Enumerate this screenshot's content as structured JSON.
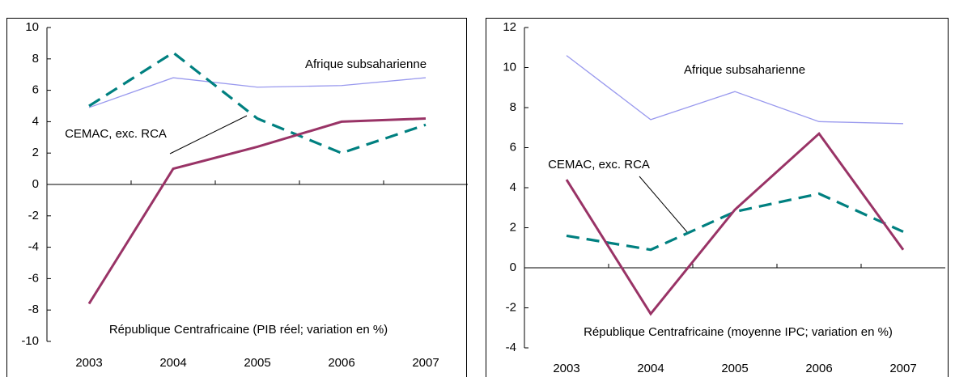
{
  "chart_data": [
    {
      "type": "line",
      "categories": [
        "2003",
        "2004",
        "2005",
        "2006",
        "2007"
      ],
      "ylim": [
        -10,
        10
      ],
      "yticks": [
        -10,
        -8,
        -6,
        -4,
        -2,
        0,
        2,
        4,
        6,
        8,
        10
      ],
      "series": [
        {
          "name": "Afrique subsaharienne",
          "color": "#9999ee",
          "values": [
            4.9,
            6.8,
            6.2,
            6.3,
            6.8
          ]
        },
        {
          "name": "CEMAC, exc. RCA",
          "color": "#008080",
          "values": [
            5.0,
            8.4,
            4.2,
            2.0,
            3.8
          ]
        },
        {
          "name": "République Centrafricaine (PIB réel; variation en %)",
          "color": "#993366",
          "values": [
            -7.6,
            1.0,
            2.4,
            4.0,
            4.2
          ]
        }
      ]
    },
    {
      "type": "line",
      "categories": [
        "2003",
        "2004",
        "2005",
        "2006",
        "2007"
      ],
      "ylim": [
        -4,
        12
      ],
      "yticks": [
        -4,
        -2,
        0,
        2,
        4,
        6,
        8,
        10,
        12
      ],
      "series": [
        {
          "name": "Afrique subsaharienne",
          "color": "#9999ee",
          "values": [
            10.6,
            7.4,
            8.8,
            7.3,
            7.2
          ]
        },
        {
          "name": "CEMAC, exc. RCA",
          "color": "#008080",
          "values": [
            1.6,
            0.9,
            2.8,
            3.7,
            1.8
          ]
        },
        {
          "name": "République Centrafricaine (moyenne IPC; variation en %)",
          "color": "#993366",
          "values": [
            4.4,
            -2.3,
            2.9,
            6.7,
            0.9
          ]
        }
      ]
    }
  ]
}
